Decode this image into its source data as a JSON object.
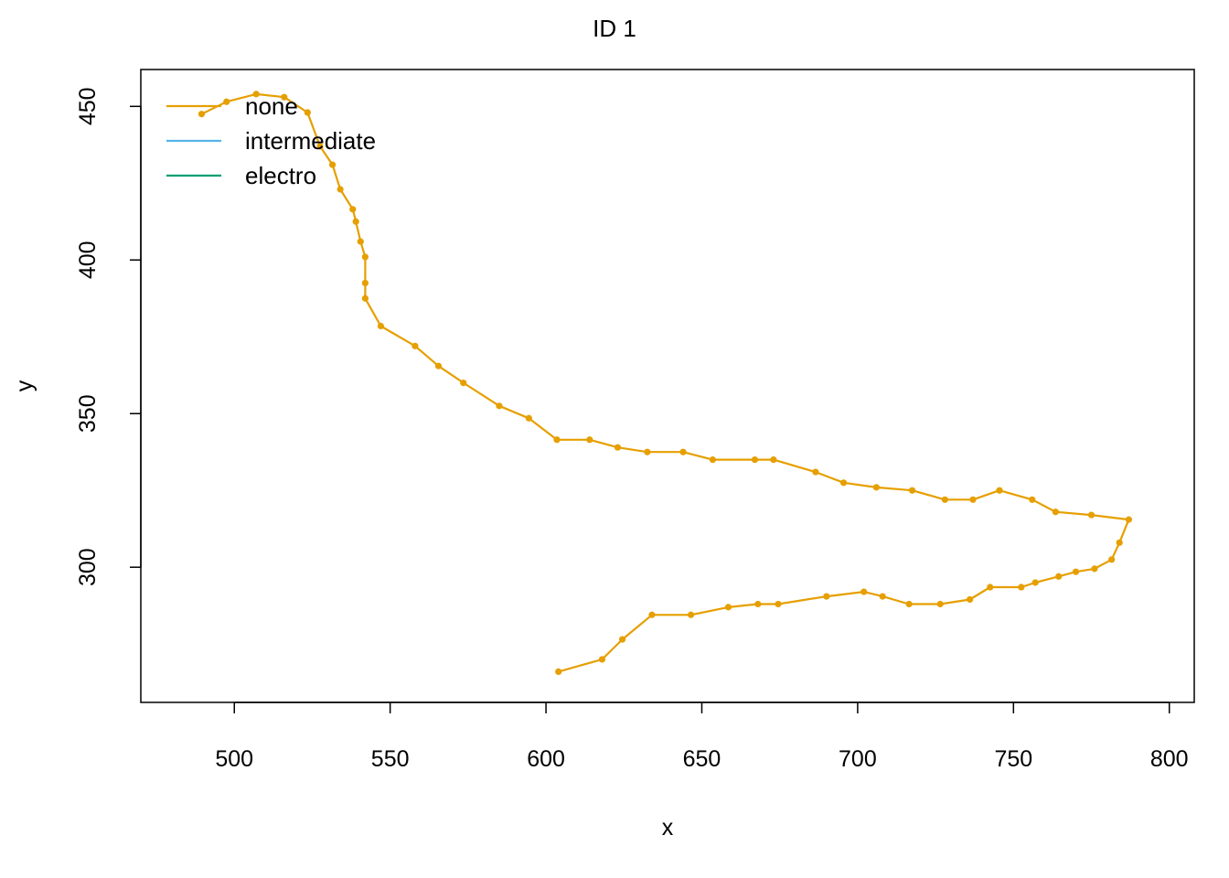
{
  "chart_data": {
    "type": "line",
    "title": "ID 1",
    "xlabel": "x",
    "ylabel": "y",
    "xlim": [
      470,
      808
    ],
    "ylim": [
      256,
      462
    ],
    "x_ticks": [
      500,
      550,
      600,
      650,
      700,
      750,
      800
    ],
    "y_ticks": [
      300,
      350,
      400,
      450
    ],
    "grid": false,
    "legend": {
      "placement": "top-left",
      "entries": [
        {
          "label": "none",
          "color": "#E69F00"
        },
        {
          "label": "intermediate",
          "color": "#56B4E9"
        },
        {
          "label": "electro",
          "color": "#009E73"
        }
      ]
    },
    "series": [
      {
        "name": "none",
        "color": "#E69F00",
        "points": [
          [
            604,
            266
          ],
          [
            618,
            270
          ],
          [
            624.5,
            276.5
          ],
          [
            634,
            284.5
          ],
          [
            646.5,
            284.5
          ],
          [
            658.5,
            287
          ],
          [
            668,
            288
          ],
          [
            674.5,
            288
          ],
          [
            690,
            290.5
          ],
          [
            702,
            292
          ],
          [
            708,
            290.5
          ],
          [
            716.5,
            288
          ],
          [
            726.5,
            288
          ],
          [
            736,
            289.5
          ],
          [
            742.5,
            293.5
          ],
          [
            752.5,
            293.5
          ],
          [
            757,
            295
          ],
          [
            764.5,
            297
          ],
          [
            770,
            298.5
          ],
          [
            776,
            299.5
          ],
          [
            781.5,
            302.5
          ],
          [
            784,
            308
          ],
          [
            787,
            315.5
          ],
          [
            775,
            317
          ],
          [
            763.5,
            318
          ],
          [
            756,
            322
          ],
          [
            745.5,
            325
          ],
          [
            737,
            322
          ],
          [
            728,
            322
          ],
          [
            717.5,
            325
          ],
          [
            706,
            326
          ],
          [
            695.5,
            327.5
          ],
          [
            686.5,
            331
          ],
          [
            673,
            335
          ],
          [
            667,
            335
          ],
          [
            653.5,
            335
          ],
          [
            644,
            337.5
          ],
          [
            632.5,
            337.5
          ],
          [
            623,
            339
          ],
          [
            614,
            341.5
          ],
          [
            603.5,
            341.5
          ],
          [
            594.5,
            348.5
          ],
          [
            585,
            352.5
          ],
          [
            573.5,
            360
          ],
          [
            565.5,
            365.5
          ],
          [
            558,
            372
          ],
          [
            547,
            378.5
          ],
          [
            542,
            387.5
          ],
          [
            542,
            392.5
          ],
          [
            542,
            401
          ],
          [
            540.5,
            406
          ],
          [
            539,
            412.5
          ],
          [
            538,
            416.5
          ],
          [
            534,
            423
          ],
          [
            531.5,
            431
          ],
          [
            527.5,
            437
          ],
          [
            523.5,
            448
          ],
          [
            516,
            453
          ],
          [
            507,
            454
          ],
          [
            497.5,
            451.5
          ],
          [
            489.5,
            447.5
          ]
        ]
      }
    ]
  }
}
